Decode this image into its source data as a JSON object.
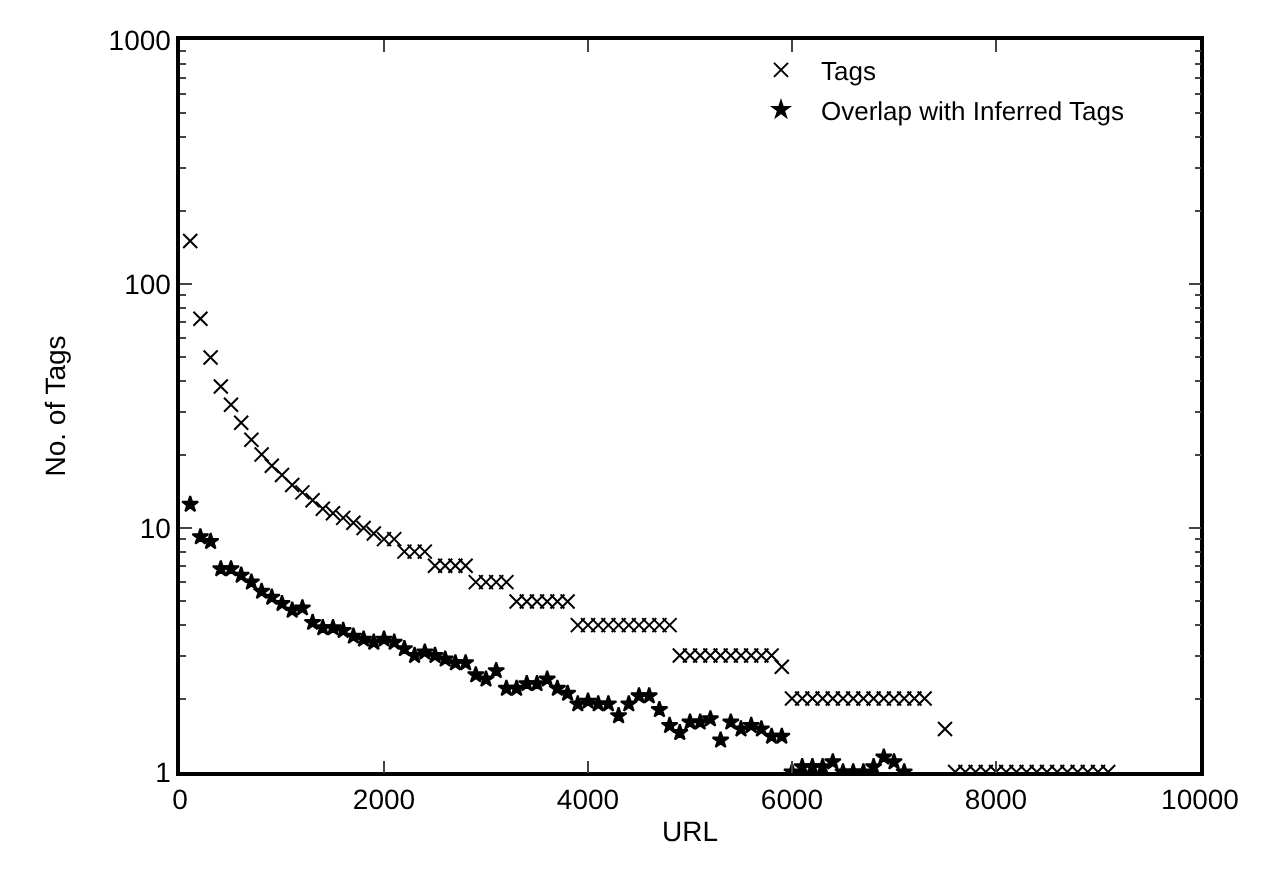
{
  "chart_data": {
    "type": "scatter",
    "xlabel": "URL",
    "ylabel": "No. of Tags",
    "log": "y",
    "grid": false,
    "legend": "top right",
    "xlim": [
      0,
      10000
    ],
    "xticks": [
      0,
      2000,
      4000,
      6000,
      8000,
      10000
    ],
    "ylim": [
      1,
      1000
    ],
    "yticks": [
      1,
      10,
      100,
      1000
    ],
    "series": [
      {
        "name": "Tags",
        "color": "#000000",
        "marker": "cross",
        "x": [
          100,
          200,
          300,
          400,
          500,
          600,
          700,
          800,
          900,
          1000,
          1100,
          1200,
          1300,
          1400,
          1500,
          1600,
          1700,
          1800,
          1900,
          2000,
          2100,
          2200,
          2300,
          2400,
          2500,
          2600,
          2700,
          2800,
          2900,
          3000,
          3100,
          3200,
          3300,
          3400,
          3500,
          3600,
          3700,
          3800,
          3900,
          4000,
          4100,
          4200,
          4300,
          4400,
          4500,
          4600,
          4700,
          4800,
          4900,
          5000,
          5100,
          5200,
          5300,
          5400,
          5500,
          5600,
          5700,
          5800,
          5900,
          6000,
          6100,
          6200,
          6300,
          6400,
          6500,
          6600,
          6700,
          6800,
          6900,
          7000,
          7100,
          7200,
          7300,
          7500,
          7600,
          7700,
          7800,
          7900,
          8000,
          8100,
          8200,
          8300,
          8400,
          8500,
          8600,
          8700,
          8800,
          8900,
          9000,
          9100
        ],
        "values": [
          150,
          72,
          50,
          38,
          32,
          27,
          23,
          20,
          18,
          16.5,
          15,
          14,
          13,
          12,
          11.5,
          11,
          10.5,
          10,
          9.5,
          9,
          9,
          8,
          8,
          8,
          7,
          7,
          7,
          7,
          6,
          6,
          6,
          6,
          5,
          5,
          5,
          5,
          5,
          5,
          4,
          4,
          4,
          4,
          4,
          4,
          4,
          4,
          4,
          4,
          3,
          3,
          3,
          3,
          3,
          3,
          3,
          3,
          3,
          3,
          2.7,
          2,
          2,
          2,
          2,
          2,
          2,
          2,
          2,
          2,
          2,
          2,
          2,
          2,
          2,
          1.5,
          1,
          1,
          1,
          1,
          1,
          1,
          1,
          1,
          1,
          1,
          1,
          1,
          1,
          1,
          1,
          1
        ]
      },
      {
        "name": "Overlap with Inferred Tags",
        "color": "#000000",
        "marker": "star",
        "x": [
          100,
          200,
          300,
          400,
          500,
          600,
          700,
          800,
          900,
          1000,
          1100,
          1200,
          1300,
          1400,
          1500,
          1600,
          1700,
          1800,
          1900,
          2000,
          2100,
          2200,
          2300,
          2400,
          2500,
          2600,
          2700,
          2800,
          2900,
          3000,
          3100,
          3200,
          3300,
          3400,
          3500,
          3600,
          3700,
          3800,
          3900,
          4000,
          4100,
          4200,
          4300,
          4400,
          4500,
          4600,
          4700,
          4800,
          4900,
          5000,
          5100,
          5200,
          5300,
          5400,
          5500,
          5600,
          5700,
          5800,
          5900,
          6000,
          6100,
          6200,
          6300,
          6400,
          6500,
          6600,
          6700,
          6800,
          6900,
          7000,
          7100
        ],
        "values": [
          12.5,
          9.2,
          8.8,
          6.8,
          6.8,
          6.4,
          6.0,
          5.5,
          5.2,
          4.9,
          4.6,
          4.7,
          4.1,
          3.9,
          3.9,
          3.8,
          3.6,
          3.5,
          3.4,
          3.5,
          3.4,
          3.2,
          3.0,
          3.1,
          3.0,
          2.9,
          2.8,
          2.8,
          2.5,
          2.4,
          2.6,
          2.2,
          2.2,
          2.3,
          2.3,
          2.4,
          2.2,
          2.1,
          1.9,
          1.95,
          1.9,
          1.9,
          1.7,
          1.9,
          2.05,
          2.05,
          1.8,
          1.55,
          1.45,
          1.6,
          1.6,
          1.65,
          1.35,
          1.6,
          1.5,
          1.55,
          1.5,
          1.4,
          1.4,
          1.0,
          1.05,
          1.05,
          1.05,
          1.1,
          1.0,
          1.0,
          1.0,
          1.05,
          1.15,
          1.1,
          1.0
        ]
      }
    ]
  }
}
